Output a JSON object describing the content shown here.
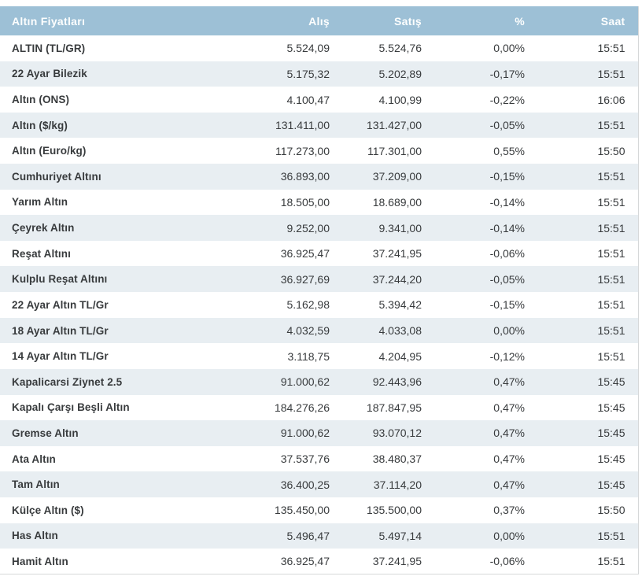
{
  "table": {
    "title": "Altın Fiyatları",
    "columns": {
      "buy": "Alış",
      "sell": "Satış",
      "pct": "%",
      "time": "Saat"
    },
    "colors": {
      "header_bg": "#9dc0d6",
      "header_text": "#fdfefe",
      "row_bg": "#ffffff",
      "row_alt_bg": "#e8eef2",
      "text": "#383b3d",
      "border": "#d6d8d9"
    },
    "rows": [
      {
        "name": "ALTIN (TL/GR)",
        "buy": "5.524,09",
        "sell": "5.524,76",
        "change": "0,00%",
        "time": "15:51"
      },
      {
        "name": "22 Ayar Bilezik",
        "buy": "5.175,32",
        "sell": "5.202,89",
        "change": "-0,17%",
        "time": "15:51"
      },
      {
        "name": "Altın (ONS)",
        "buy": "4.100,47",
        "sell": "4.100,99",
        "change": "-0,22%",
        "time": "16:06"
      },
      {
        "name": "Altın ($/kg)",
        "buy": "131.411,00",
        "sell": "131.427,00",
        "change": "-0,05%",
        "time": "15:51"
      },
      {
        "name": "Altın (Euro/kg)",
        "buy": "117.273,00",
        "sell": "117.301,00",
        "change": "0,55%",
        "time": "15:50"
      },
      {
        "name": "Cumhuriyet Altını",
        "buy": "36.893,00",
        "sell": "37.209,00",
        "change": "-0,15%",
        "time": "15:51"
      },
      {
        "name": "Yarım Altın",
        "buy": "18.505,00",
        "sell": "18.689,00",
        "change": "-0,14%",
        "time": "15:51"
      },
      {
        "name": "Çeyrek Altın",
        "buy": "9.252,00",
        "sell": "9.341,00",
        "change": "-0,14%",
        "time": "15:51"
      },
      {
        "name": "Reşat Altını",
        "buy": "36.925,47",
        "sell": "37.241,95",
        "change": "-0,06%",
        "time": "15:51"
      },
      {
        "name": "Kulplu Reşat Altını",
        "buy": "36.927,69",
        "sell": "37.244,20",
        "change": "-0,05%",
        "time": "15:51"
      },
      {
        "name": "22 Ayar Altın TL/Gr",
        "buy": "5.162,98",
        "sell": "5.394,42",
        "change": "-0,15%",
        "time": "15:51"
      },
      {
        "name": "18 Ayar Altın TL/Gr",
        "buy": "4.032,59",
        "sell": "4.033,08",
        "change": "0,00%",
        "time": "15:51"
      },
      {
        "name": "14 Ayar Altın TL/Gr",
        "buy": "3.118,75",
        "sell": "4.204,95",
        "change": "-0,12%",
        "time": "15:51"
      },
      {
        "name": "Kapalicarsi Ziynet 2.5",
        "buy": "91.000,62",
        "sell": "92.443,96",
        "change": "0,47%",
        "time": "15:45"
      },
      {
        "name": "Kapalı Çarşı Beşli Altın",
        "buy": "184.276,26",
        "sell": "187.847,95",
        "change": "0,47%",
        "time": "15:45"
      },
      {
        "name": "Gremse Altın",
        "buy": "91.000,62",
        "sell": "93.070,12",
        "change": "0,47%",
        "time": "15:45"
      },
      {
        "name": "Ata Altın",
        "buy": "37.537,76",
        "sell": "38.480,37",
        "change": "0,47%",
        "time": "15:45"
      },
      {
        "name": "Tam Altın",
        "buy": "36.400,25",
        "sell": "37.114,20",
        "change": "0,47%",
        "time": "15:45"
      },
      {
        "name": "Külçe Altın ($)",
        "buy": "135.450,00",
        "sell": "135.500,00",
        "change": "0,37%",
        "time": "15:50"
      },
      {
        "name": "Has Altın",
        "buy": "5.496,47",
        "sell": "5.497,14",
        "change": "0,00%",
        "time": "15:51"
      },
      {
        "name": "Hamit Altın",
        "buy": "36.925,47",
        "sell": "37.241,95",
        "change": "-0,06%",
        "time": "15:51"
      }
    ]
  }
}
